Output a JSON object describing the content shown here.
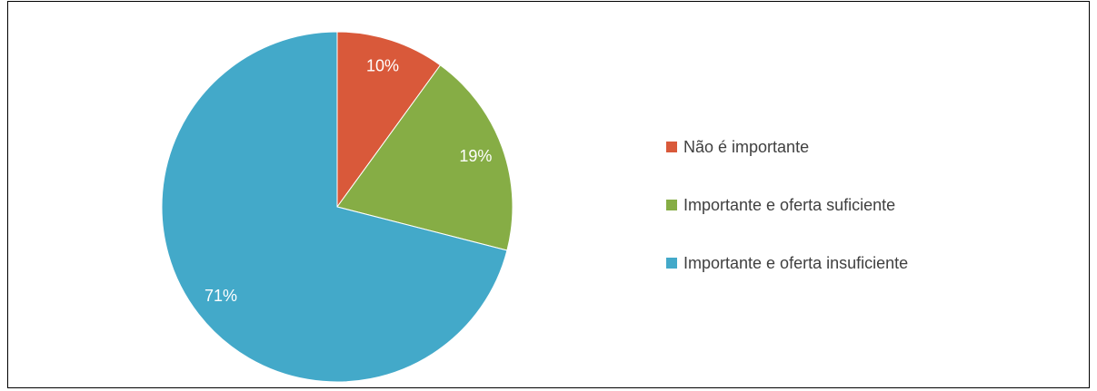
{
  "chart_data": {
    "type": "pie",
    "categories": [
      "Não é importante",
      "Importante e oferta suficiente",
      "Importante e oferta insuficiente"
    ],
    "values": [
      10,
      19,
      71
    ],
    "value_labels": [
      "10%",
      "19%",
      "71%"
    ],
    "colors": [
      "#d9593a",
      "#86ad45",
      "#43a9c9"
    ],
    "legend": "right"
  }
}
